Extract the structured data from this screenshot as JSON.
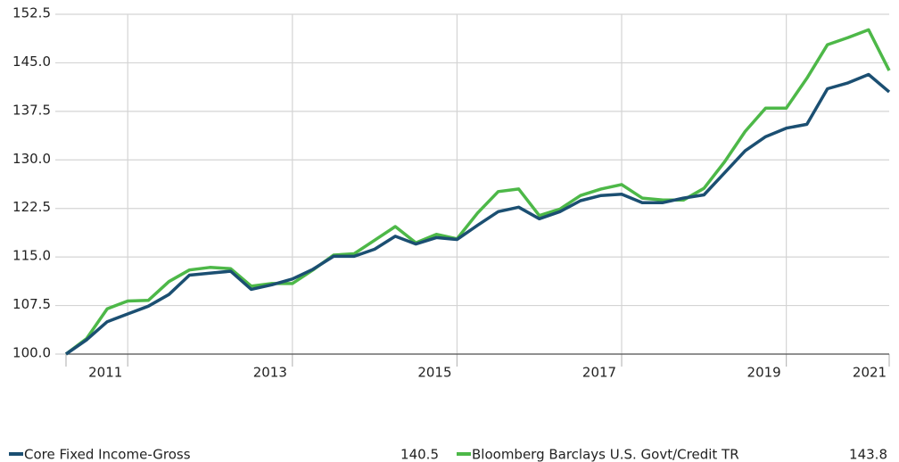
{
  "chart_data": {
    "type": "line",
    "categories": [
      null,
      null,
      null,
      "2011",
      null,
      null,
      null,
      null,
      null,
      null,
      null,
      "2013",
      null,
      null,
      null,
      null,
      null,
      null,
      null,
      "2015",
      null,
      null,
      null,
      null,
      null,
      null,
      null,
      "2017",
      null,
      null,
      null,
      null,
      null,
      null,
      null,
      "2019",
      null,
      null,
      null,
      null,
      "2021"
    ],
    "series": [
      {
        "name": "Core Fixed Income-Gross",
        "color": "#1b4f72",
        "values": [
          100.0,
          102.2,
          105.0,
          106.2,
          107.4,
          109.2,
          112.2,
          112.5,
          112.8,
          110.0,
          110.7,
          111.6,
          113.1,
          115.1,
          115.1,
          116.2,
          118.2,
          117.0,
          118.0,
          117.7,
          119.9,
          122.0,
          122.7,
          120.9,
          122.0,
          123.7,
          124.5,
          124.7,
          123.4,
          123.4,
          124.1,
          124.6,
          128.0,
          131.4,
          133.6,
          134.9,
          135.5,
          141.0,
          141.9,
          143.2,
          140.5
        ]
      },
      {
        "name": "Bloomberg Barclays U.S. Govt/Credit TR",
        "color": "#4db848",
        "values": [
          100.0,
          102.4,
          107.0,
          108.2,
          108.3,
          111.2,
          113.0,
          113.4,
          113.2,
          110.5,
          110.9,
          110.9,
          113.0,
          115.3,
          115.5,
          117.6,
          119.7,
          117.2,
          118.5,
          117.8,
          121.8,
          125.1,
          125.5,
          121.4,
          122.4,
          124.5,
          125.5,
          126.2,
          124.1,
          123.8,
          123.8,
          125.6,
          129.7,
          134.4,
          138.0,
          138.0,
          142.6,
          147.8,
          148.9,
          150.1,
          143.8
        ]
      }
    ],
    "ylim": [
      100,
      152.5
    ],
    "yticks": [
      {
        "value": 100,
        "label": "100.0"
      },
      107.5,
      {
        "value": 115,
        "label": "115.0"
      },
      122.5,
      {
        "value": 130,
        "label": "130.0"
      },
      137.5,
      {
        "value": 145,
        "label": "145.0"
      },
      152.5
    ],
    "grid": true
  }
}
